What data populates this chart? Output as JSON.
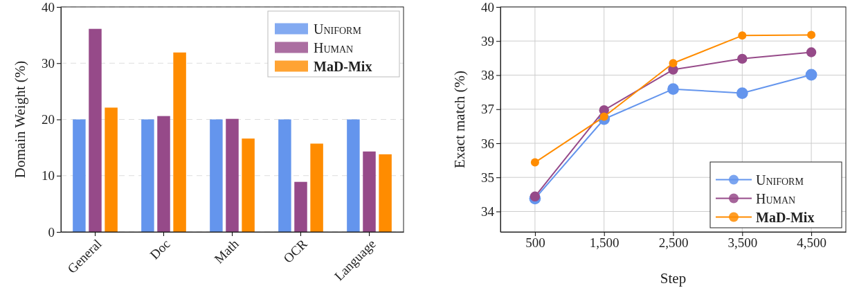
{
  "chart_data": [
    {
      "type": "bar",
      "ylabel": "Domain Weight (%)",
      "categories": [
        "General",
        "Doc",
        "Math",
        "OCR",
        "Language"
      ],
      "ylim": [
        0,
        40
      ],
      "yticks": [
        0,
        10,
        20,
        30,
        40
      ],
      "grid": "y",
      "legend": "top right",
      "series": [
        {
          "name": "Uniform",
          "color": "#6495ed",
          "values": [
            20,
            20,
            20,
            20,
            20
          ]
        },
        {
          "name": "Human",
          "color": "#964a89",
          "values": [
            36.1,
            20.6,
            20.1,
            8.9,
            14.3
          ]
        },
        {
          "name": "MaD-Mix",
          "color": "#ff8c00",
          "values": [
            22.1,
            31.9,
            16.6,
            15.7,
            13.8
          ]
        }
      ]
    },
    {
      "type": "line",
      "xlabel": "Step",
      "ylabel": "Exact match (%)",
      "x": [
        500,
        1500,
        2500,
        3500,
        4500
      ],
      "xlim": [
        0,
        5000
      ],
      "xticks": [
        {
          "value": 500,
          "label": "500"
        },
        {
          "value": 1500,
          "label": "1,500"
        },
        {
          "value": 2500,
          "label": "2,500"
        },
        {
          "value": 3500,
          "label": "3,500"
        },
        {
          "value": 4500,
          "label": "4,500"
        }
      ],
      "ylim": [
        33.4,
        40
      ],
      "yticks": [
        34,
        35,
        36,
        37,
        38,
        39,
        40
      ],
      "grid": true,
      "legend": "bottom right",
      "marker": "circle",
      "series": [
        {
          "name": "Uniform",
          "color": "#6495ed",
          "values": [
            34.38,
            36.71,
            37.59,
            37.47,
            38.01
          ]
        },
        {
          "name": "Human",
          "color": "#964a89",
          "values": [
            34.44,
            36.97,
            38.16,
            38.48,
            38.67
          ]
        },
        {
          "name": "MaD-Mix",
          "color": "#ff8c00",
          "values": [
            35.44,
            36.78,
            38.35,
            39.16,
            39.18
          ]
        }
      ]
    }
  ]
}
